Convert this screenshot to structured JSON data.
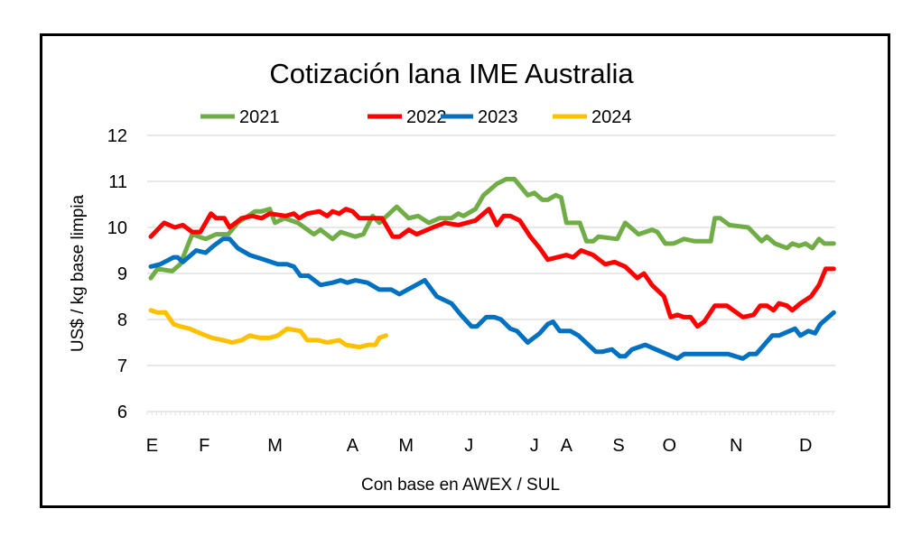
{
  "chart_data": {
    "type": "line",
    "title": "Cotización lana IME Australia",
    "ylabel": "US$ / kg base limpia",
    "xlabel": "Con base en AWEX / SUL",
    "ylim": [
      6,
      12
    ],
    "yticks": [
      6,
      7,
      8,
      9,
      10,
      11,
      12
    ],
    "xlim": [
      1,
      52
    ],
    "x_unit": "week",
    "xticks": [
      {
        "label": "E",
        "x": 1.1
      },
      {
        "label": "F",
        "x": 5.0
      },
      {
        "label": "M",
        "x": 10.3
      },
      {
        "label": "A",
        "x": 16.1
      },
      {
        "label": "M",
        "x": 20.1
      },
      {
        "label": "J",
        "x": 24.8
      },
      {
        "label": "J",
        "x": 29.7
      },
      {
        "label": "A",
        "x": 32.1
      },
      {
        "label": "S",
        "x": 36.0
      },
      {
        "label": "O",
        "x": 39.8
      },
      {
        "label": "N",
        "x": 44.8
      },
      {
        "label": "D",
        "x": 50.0
      }
    ],
    "grid": true,
    "legend": "top",
    "series": [
      {
        "name": "2021",
        "color": "#70AD47",
        "points": [
          [
            1.0,
            8.9
          ],
          [
            1.5,
            9.1
          ],
          [
            2.6,
            9.05
          ],
          [
            3.2,
            9.2
          ],
          [
            4.1,
            9.85
          ],
          [
            5.1,
            9.75
          ],
          [
            5.9,
            9.85
          ],
          [
            6.8,
            9.85
          ],
          [
            7.5,
            10.1
          ],
          [
            8.8,
            10.35
          ],
          [
            9.3,
            10.35
          ],
          [
            9.9,
            10.4
          ],
          [
            10.3,
            10.1
          ],
          [
            11.0,
            10.2
          ],
          [
            12.0,
            10.1
          ],
          [
            13.2,
            9.85
          ],
          [
            13.7,
            9.95
          ],
          [
            14.6,
            9.75
          ],
          [
            15.2,
            9.9
          ],
          [
            16.3,
            9.8
          ],
          [
            16.9,
            9.85
          ],
          [
            17.6,
            10.25
          ],
          [
            18.1,
            10.1
          ],
          [
            19.4,
            10.45
          ],
          [
            20.3,
            10.2
          ],
          [
            21.0,
            10.25
          ],
          [
            21.8,
            10.1
          ],
          [
            22.6,
            10.2
          ],
          [
            23.5,
            10.2
          ],
          [
            24.0,
            10.3
          ],
          [
            24.4,
            10.25
          ],
          [
            25.3,
            10.4
          ],
          [
            25.9,
            10.7
          ],
          [
            26.9,
            10.95
          ],
          [
            27.6,
            11.05
          ],
          [
            28.2,
            11.05
          ],
          [
            29.2,
            10.7
          ],
          [
            29.7,
            10.75
          ],
          [
            30.3,
            10.6
          ],
          [
            30.7,
            10.6
          ],
          [
            31.3,
            10.7
          ],
          [
            31.7,
            10.65
          ],
          [
            32.1,
            10.1
          ],
          [
            33.1,
            10.1
          ],
          [
            33.6,
            9.7
          ],
          [
            34.1,
            9.7
          ],
          [
            34.5,
            9.8
          ],
          [
            35.9,
            9.75
          ],
          [
            36.5,
            10.1
          ],
          [
            36.9,
            10.0
          ],
          [
            37.5,
            9.85
          ],
          [
            38.5,
            9.95
          ],
          [
            38.9,
            9.9
          ],
          [
            39.5,
            9.65
          ],
          [
            40.1,
            9.65
          ],
          [
            40.9,
            9.75
          ],
          [
            41.7,
            9.7
          ],
          [
            42.9,
            9.7
          ],
          [
            43.2,
            10.2
          ],
          [
            43.6,
            10.2
          ],
          [
            44.3,
            10.05
          ],
          [
            45.7,
            10.0
          ],
          [
            46.7,
            9.7
          ],
          [
            47.1,
            9.8
          ],
          [
            47.7,
            9.65
          ],
          [
            48.6,
            9.55
          ],
          [
            49.0,
            9.65
          ],
          [
            49.5,
            9.6
          ],
          [
            50.0,
            9.65
          ],
          [
            50.5,
            9.55
          ],
          [
            51.0,
            9.75
          ],
          [
            51.4,
            9.65
          ],
          [
            52.1,
            9.65
          ]
        ]
      },
      {
        "name": "2022",
        "color": "#FF0000",
        "points": [
          [
            1.0,
            9.8
          ],
          [
            2.0,
            10.1
          ],
          [
            2.8,
            10.0
          ],
          [
            3.4,
            10.05
          ],
          [
            4.1,
            9.9
          ],
          [
            4.7,
            9.9
          ],
          [
            5.5,
            10.3
          ],
          [
            5.9,
            10.2
          ],
          [
            6.5,
            10.2
          ],
          [
            6.9,
            10.0
          ],
          [
            7.8,
            10.2
          ],
          [
            8.6,
            10.25
          ],
          [
            9.3,
            10.2
          ],
          [
            9.9,
            10.3
          ],
          [
            11.1,
            10.25
          ],
          [
            11.7,
            10.3
          ],
          [
            12.1,
            10.2
          ],
          [
            12.7,
            10.3
          ],
          [
            13.6,
            10.35
          ],
          [
            14.2,
            10.25
          ],
          [
            14.6,
            10.35
          ],
          [
            15.1,
            10.3
          ],
          [
            15.6,
            10.4
          ],
          [
            16.1,
            10.35
          ],
          [
            16.6,
            10.2
          ],
          [
            18.3,
            10.2
          ],
          [
            19.1,
            9.8
          ],
          [
            19.6,
            9.8
          ],
          [
            20.3,
            9.95
          ],
          [
            20.9,
            9.85
          ],
          [
            22.1,
            10.0
          ],
          [
            23.0,
            10.1
          ],
          [
            24.0,
            10.05
          ],
          [
            25.3,
            10.15
          ],
          [
            26.3,
            10.4
          ],
          [
            26.9,
            10.05
          ],
          [
            27.4,
            10.25
          ],
          [
            27.9,
            10.25
          ],
          [
            28.6,
            10.15
          ],
          [
            29.4,
            9.8
          ],
          [
            30.1,
            9.55
          ],
          [
            30.7,
            9.3
          ],
          [
            32.1,
            9.4
          ],
          [
            32.6,
            9.35
          ],
          [
            33.2,
            9.5
          ],
          [
            34.1,
            9.4
          ],
          [
            35.0,
            9.2
          ],
          [
            35.7,
            9.25
          ],
          [
            36.5,
            9.15
          ],
          [
            37.4,
            8.9
          ],
          [
            37.9,
            9.0
          ],
          [
            38.5,
            8.75
          ],
          [
            39.4,
            8.5
          ],
          [
            39.9,
            8.05
          ],
          [
            40.4,
            8.1
          ],
          [
            40.9,
            8.05
          ],
          [
            41.4,
            8.05
          ],
          [
            41.9,
            7.85
          ],
          [
            42.4,
            7.95
          ],
          [
            43.2,
            8.3
          ],
          [
            44.1,
            8.3
          ],
          [
            45.3,
            8.05
          ],
          [
            46.1,
            8.1
          ],
          [
            46.6,
            8.3
          ],
          [
            47.1,
            8.3
          ],
          [
            47.6,
            8.2
          ],
          [
            48.0,
            8.35
          ],
          [
            48.6,
            8.3
          ],
          [
            49.0,
            8.2
          ],
          [
            49.6,
            8.35
          ],
          [
            50.4,
            8.5
          ],
          [
            51.0,
            8.75
          ],
          [
            51.5,
            9.1
          ],
          [
            52.1,
            9.1
          ]
        ]
      },
      {
        "name": "2023",
        "color": "#0070C0",
        "points": [
          [
            1.0,
            9.15
          ],
          [
            1.7,
            9.2
          ],
          [
            2.7,
            9.35
          ],
          [
            3.0,
            9.35
          ],
          [
            3.4,
            9.25
          ],
          [
            4.4,
            9.5
          ],
          [
            5.1,
            9.45
          ],
          [
            5.7,
            9.6
          ],
          [
            6.4,
            9.75
          ],
          [
            6.9,
            9.75
          ],
          [
            7.5,
            9.55
          ],
          [
            8.4,
            9.4
          ],
          [
            9.5,
            9.3
          ],
          [
            10.5,
            9.2
          ],
          [
            11.2,
            9.2
          ],
          [
            11.7,
            9.15
          ],
          [
            12.2,
            8.95
          ],
          [
            12.8,
            8.95
          ],
          [
            13.7,
            8.75
          ],
          [
            14.6,
            8.8
          ],
          [
            15.2,
            8.85
          ],
          [
            15.7,
            8.8
          ],
          [
            16.3,
            8.85
          ],
          [
            17.2,
            8.8
          ],
          [
            18.1,
            8.65
          ],
          [
            19.0,
            8.65
          ],
          [
            19.6,
            8.55
          ],
          [
            21.5,
            8.85
          ],
          [
            22.4,
            8.5
          ],
          [
            23.5,
            8.35
          ],
          [
            24.2,
            8.1
          ],
          [
            25.0,
            7.85
          ],
          [
            25.4,
            7.85
          ],
          [
            26.1,
            8.05
          ],
          [
            26.7,
            8.05
          ],
          [
            27.2,
            8.0
          ],
          [
            27.9,
            7.8
          ],
          [
            28.4,
            7.75
          ],
          [
            29.2,
            7.5
          ],
          [
            30.1,
            7.7
          ],
          [
            30.7,
            7.9
          ],
          [
            31.1,
            7.95
          ],
          [
            31.6,
            7.75
          ],
          [
            32.4,
            7.75
          ],
          [
            33.0,
            7.65
          ],
          [
            34.3,
            7.3
          ],
          [
            34.8,
            7.3
          ],
          [
            35.5,
            7.35
          ],
          [
            36.1,
            7.2
          ],
          [
            36.5,
            7.2
          ],
          [
            37.0,
            7.35
          ],
          [
            38.0,
            7.45
          ],
          [
            38.8,
            7.35
          ],
          [
            40.4,
            7.15
          ],
          [
            40.9,
            7.25
          ],
          [
            41.9,
            7.25
          ],
          [
            42.9,
            7.25
          ],
          [
            44.2,
            7.25
          ],
          [
            45.3,
            7.15
          ],
          [
            45.8,
            7.25
          ],
          [
            46.3,
            7.25
          ],
          [
            47.5,
            7.65
          ],
          [
            48.0,
            7.65
          ],
          [
            49.2,
            7.8
          ],
          [
            49.6,
            7.65
          ],
          [
            50.2,
            7.75
          ],
          [
            50.7,
            7.7
          ],
          [
            51.1,
            7.9
          ],
          [
            51.5,
            8.0
          ],
          [
            52.1,
            8.15
          ]
        ]
      },
      {
        "name": "2024",
        "color": "#FFC000",
        "points": [
          [
            1.0,
            8.2
          ],
          [
            1.5,
            8.15
          ],
          [
            2.1,
            8.15
          ],
          [
            2.7,
            7.9
          ],
          [
            3.2,
            7.85
          ],
          [
            3.9,
            7.8
          ],
          [
            4.7,
            7.7
          ],
          [
            5.6,
            7.6
          ],
          [
            6.4,
            7.55
          ],
          [
            7.1,
            7.5
          ],
          [
            7.8,
            7.55
          ],
          [
            8.4,
            7.65
          ],
          [
            9.2,
            7.6
          ],
          [
            9.9,
            7.6
          ],
          [
            10.5,
            7.65
          ],
          [
            11.2,
            7.8
          ],
          [
            12.2,
            7.75
          ],
          [
            12.7,
            7.55
          ],
          [
            13.5,
            7.55
          ],
          [
            14.2,
            7.5
          ],
          [
            15.1,
            7.55
          ],
          [
            15.6,
            7.45
          ],
          [
            16.6,
            7.4
          ],
          [
            17.3,
            7.45
          ],
          [
            17.8,
            7.45
          ],
          [
            18.1,
            7.6
          ],
          [
            18.6,
            7.65
          ]
        ]
      }
    ]
  }
}
